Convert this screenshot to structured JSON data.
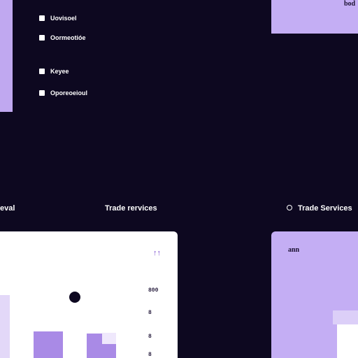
{
  "top_right_label": "bod",
  "checklist": {
    "items": [
      {
        "label": "Uovisoel"
      },
      {
        "label": "Oormeotióe"
      },
      {
        "label": "Keyee"
      },
      {
        "label": "Oporeoeioul"
      }
    ]
  },
  "sections": {
    "left_title": "eval",
    "middle_title": "Trade rervices",
    "right_title": "Trade Services"
  },
  "chart_card": {
    "corner_icon": "↑↑",
    "ticks": [
      "800",
      "8",
      "8",
      "8"
    ]
  },
  "right_card": {
    "label": "ann"
  },
  "colors": {
    "background": "#0d0820",
    "accent_lavender": "#c4aef4",
    "bar_purple": "#a98ae6"
  }
}
